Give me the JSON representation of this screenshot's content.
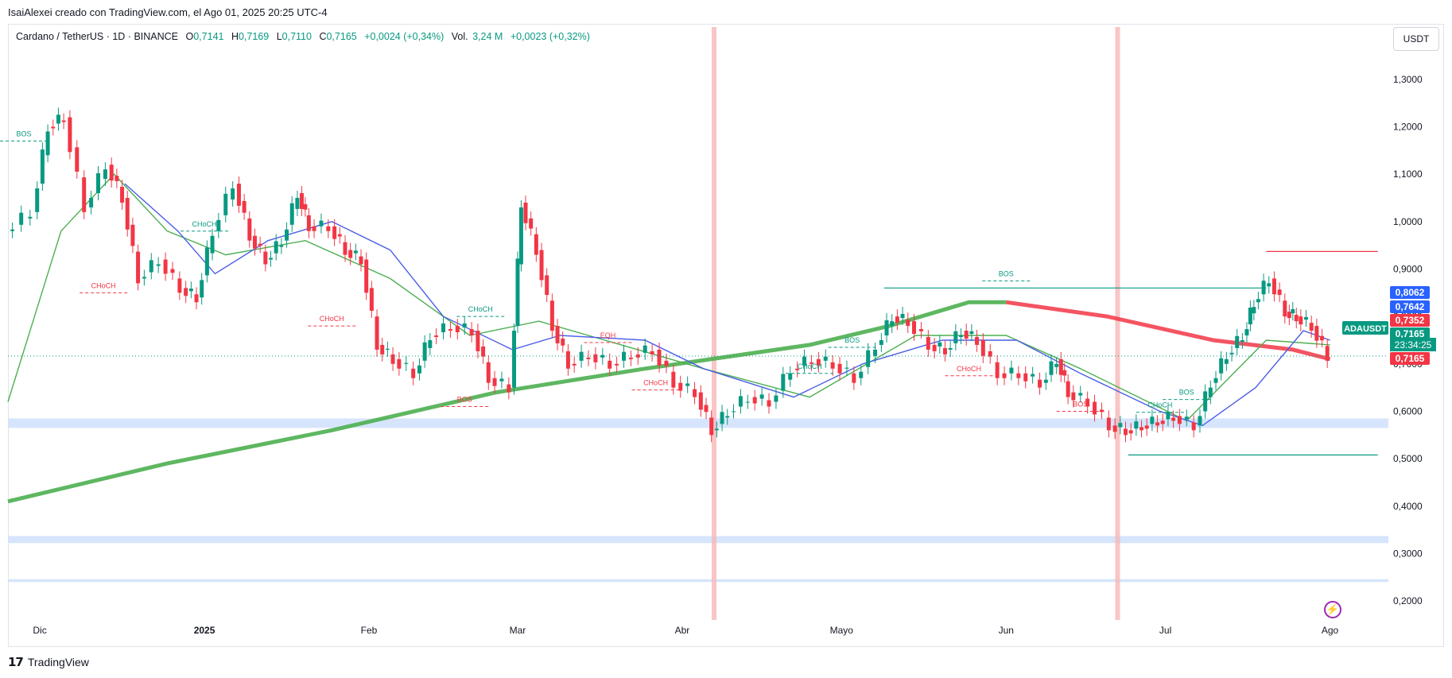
{
  "credit": "IsaiAlexei creado con TradingView.com, el Ago 01, 2025 20:25 UTC-4",
  "legend": {
    "symbol": "Cardano / TetherUS · 1D · BINANCE",
    "o_label": "O",
    "o": "0,7141",
    "h_label": "H",
    "h": "0,7169",
    "l_label": "L",
    "l": "0,7110",
    "c_label": "C",
    "c": "0,7165",
    "change": "+0,0024 (+0,34%)",
    "vol_label": "Vol.",
    "vol": "3,24 M",
    "vol_change": "+0,0023 (+0,32%)"
  },
  "currency_button": "USDT",
  "footer_logo": "TradingView",
  "colors": {
    "up": "#089981",
    "down": "#f23645",
    "wick_up": "#089981",
    "ema_long_up": "#4caf50",
    "ema_long_down": "#f23645",
    "ema_fast": "#4c5fe6",
    "ema_mid_up": "#4caf50",
    "ema_mid_down": "#f23645",
    "zone_blue": "#cfe0fb",
    "vline_red": "#f7b6b6",
    "price_line": "#089981"
  },
  "price_badges": [
    {
      "value": "0,8062",
      "color": "#2962ff"
    },
    {
      "value": "0,7642",
      "color": "#2962ff"
    },
    {
      "value": "0,7352",
      "color": "#f23645"
    },
    {
      "value": "0,7165",
      "color": "#089981"
    },
    {
      "value": "0,7165",
      "color": "#f23645"
    }
  ],
  "symbol_badge": "ADAUSDT",
  "countdown": "23:34:25",
  "chart_data": {
    "type": "candlestick",
    "ylim": [
      0.16,
      1.36
    ],
    "y_ticks": [
      "1,3000",
      "1,2000",
      "1,1000",
      "1,0000",
      "0,9000",
      "0,8000",
      "0,7000",
      "0,6000",
      "0,5000",
      "0,4000",
      "0,3000",
      "0,2000"
    ],
    "x_ticks": [
      {
        "label": "Dic",
        "date": "2024-12-01"
      },
      {
        "label": "2025",
        "date": "2025-01-01"
      },
      {
        "label": "Feb",
        "date": "2025-02-01"
      },
      {
        "label": "Mar",
        "date": "2025-03-01"
      },
      {
        "label": "Abr",
        "date": "2025-04-01"
      },
      {
        "label": "Mayo",
        "date": "2025-05-01"
      },
      {
        "label": "Jun",
        "date": "2025-06-01"
      },
      {
        "label": "Jul",
        "date": "2025-07-01"
      },
      {
        "label": "Ago",
        "date": "2025-08-01"
      }
    ],
    "x_range": [
      "2024-11-25",
      "2025-08-12"
    ],
    "closes": [
      {
        "date": "2024-11-25",
        "close": 0.98
      },
      {
        "date": "2024-11-30",
        "close": 1.02
      },
      {
        "date": "2024-12-03",
        "close": 1.2
      },
      {
        "date": "2024-12-06",
        "close": 1.22
      },
      {
        "date": "2024-12-10",
        "close": 1.03
      },
      {
        "date": "2024-12-14",
        "close": 1.12
      },
      {
        "date": "2024-12-17",
        "close": 1.05
      },
      {
        "date": "2024-12-20",
        "close": 0.88
      },
      {
        "date": "2024-12-24",
        "close": 0.92
      },
      {
        "date": "2024-12-28",
        "close": 0.86
      },
      {
        "date": "2024-12-31",
        "close": 0.84
      },
      {
        "date": "2025-01-03",
        "close": 0.98
      },
      {
        "date": "2025-01-07",
        "close": 1.08
      },
      {
        "date": "2025-01-10",
        "close": 0.97
      },
      {
        "date": "2025-01-13",
        "close": 0.92
      },
      {
        "date": "2025-01-16",
        "close": 0.96
      },
      {
        "date": "2025-01-19",
        "close": 1.06
      },
      {
        "date": "2025-01-21",
        "close": 0.99
      },
      {
        "date": "2025-01-25",
        "close": 0.99
      },
      {
        "date": "2025-01-28",
        "close": 0.94
      },
      {
        "date": "2025-01-31",
        "close": 0.92
      },
      {
        "date": "2025-02-03",
        "close": 0.74
      },
      {
        "date": "2025-02-06",
        "close": 0.71
      },
      {
        "date": "2025-02-10",
        "close": 0.68
      },
      {
        "date": "2025-02-13",
        "close": 0.76
      },
      {
        "date": "2025-02-17",
        "close": 0.78
      },
      {
        "date": "2025-02-21",
        "close": 0.77
      },
      {
        "date": "2025-02-24",
        "close": 0.67
      },
      {
        "date": "2025-02-28",
        "close": 0.65
      },
      {
        "date": "2025-03-02",
        "close": 1.04
      },
      {
        "date": "2025-03-05",
        "close": 0.94
      },
      {
        "date": "2025-03-08",
        "close": 0.78
      },
      {
        "date": "2025-03-11",
        "close": 0.7
      },
      {
        "date": "2025-03-15",
        "close": 0.72
      },
      {
        "date": "2025-03-19",
        "close": 0.7
      },
      {
        "date": "2025-03-23",
        "close": 0.72
      },
      {
        "date": "2025-03-27",
        "close": 0.73
      },
      {
        "date": "2025-03-31",
        "close": 0.66
      },
      {
        "date": "2025-04-04",
        "close": 0.64
      },
      {
        "date": "2025-04-07",
        "close": 0.56
      },
      {
        "date": "2025-04-10",
        "close": 0.6
      },
      {
        "date": "2025-04-14",
        "close": 0.63
      },
      {
        "date": "2025-04-18",
        "close": 0.62
      },
      {
        "date": "2025-04-22",
        "close": 0.69
      },
      {
        "date": "2025-04-26",
        "close": 0.71
      },
      {
        "date": "2025-04-30",
        "close": 0.7
      },
      {
        "date": "2025-05-04",
        "close": 0.67
      },
      {
        "date": "2025-05-08",
        "close": 0.74
      },
      {
        "date": "2025-05-11",
        "close": 0.8
      },
      {
        "date": "2025-05-14",
        "close": 0.79
      },
      {
        "date": "2025-05-18",
        "close": 0.74
      },
      {
        "date": "2025-05-21",
        "close": 0.73
      },
      {
        "date": "2025-05-24",
        "close": 0.77
      },
      {
        "date": "2025-05-27",
        "close": 0.75
      },
      {
        "date": "2025-05-31",
        "close": 0.68
      },
      {
        "date": "2025-06-04",
        "close": 0.68
      },
      {
        "date": "2025-06-08",
        "close": 0.66
      },
      {
        "date": "2025-06-11",
        "close": 0.71
      },
      {
        "date": "2025-06-13",
        "close": 0.64
      },
      {
        "date": "2025-06-17",
        "close": 0.62
      },
      {
        "date": "2025-06-21",
        "close": 0.57
      },
      {
        "date": "2025-06-24",
        "close": 0.56
      },
      {
        "date": "2025-06-27",
        "close": 0.57
      },
      {
        "date": "2025-06-30",
        "close": 0.58
      },
      {
        "date": "2025-07-03",
        "close": 0.59
      },
      {
        "date": "2025-07-07",
        "close": 0.57
      },
      {
        "date": "2025-07-10",
        "close": 0.66
      },
      {
        "date": "2025-07-13",
        "close": 0.72
      },
      {
        "date": "2025-07-16",
        "close": 0.76
      },
      {
        "date": "2025-07-18",
        "close": 0.83
      },
      {
        "date": "2025-07-21",
        "close": 0.88
      },
      {
        "date": "2025-07-24",
        "close": 0.81
      },
      {
        "date": "2025-07-26",
        "close": 0.8
      },
      {
        "date": "2025-07-29",
        "close": 0.78
      },
      {
        "date": "2025-08-01",
        "close": 0.7165
      }
    ],
    "ema_long": [
      {
        "date": "2024-11-25",
        "value": 0.41
      },
      {
        "date": "2024-12-25",
        "value": 0.49
      },
      {
        "date": "2025-01-25",
        "value": 0.56
      },
      {
        "date": "2025-02-25",
        "value": 0.64
      },
      {
        "date": "2025-03-25",
        "value": 0.69
      },
      {
        "date": "2025-04-25",
        "value": 0.74
      },
      {
        "date": "2025-05-10",
        "value": 0.78
      },
      {
        "date": "2025-05-25",
        "value": 0.83
      },
      {
        "date": "2025-06-01",
        "value": 0.83
      },
      {
        "date": "2025-06-20",
        "value": 0.8
      },
      {
        "date": "2025-07-10",
        "value": 0.75
      },
      {
        "date": "2025-07-25",
        "value": 0.73
      },
      {
        "date": "2025-08-01",
        "value": 0.71
      }
    ],
    "ema_fast": [
      {
        "date": "2024-12-17",
        "value": 1.08
      },
      {
        "date": "2024-12-27",
        "value": 0.98
      },
      {
        "date": "2025-01-03",
        "value": 0.89
      },
      {
        "date": "2025-01-13",
        "value": 0.96
      },
      {
        "date": "2025-01-25",
        "value": 1.0
      },
      {
        "date": "2025-02-05",
        "value": 0.94
      },
      {
        "date": "2025-02-15",
        "value": 0.8
      },
      {
        "date": "2025-02-28",
        "value": 0.73
      },
      {
        "date": "2025-03-09",
        "value": 0.76
      },
      {
        "date": "2025-03-25",
        "value": 0.75
      },
      {
        "date": "2025-04-05",
        "value": 0.69
      },
      {
        "date": "2025-04-22",
        "value": 0.63
      },
      {
        "date": "2025-05-05",
        "value": 0.7
      },
      {
        "date": "2025-05-20",
        "value": 0.75
      },
      {
        "date": "2025-06-03",
        "value": 0.75
      },
      {
        "date": "2025-06-15",
        "value": 0.68
      },
      {
        "date": "2025-06-30",
        "value": 0.6
      },
      {
        "date": "2025-07-08",
        "value": 0.57
      },
      {
        "date": "2025-07-18",
        "value": 0.65
      },
      {
        "date": "2025-07-27",
        "value": 0.77
      },
      {
        "date": "2025-08-01",
        "value": 0.75
      }
    ],
    "ema_mid": [
      {
        "date": "2024-11-25",
        "value": 0.62
      },
      {
        "date": "2024-12-05",
        "value": 0.98
      },
      {
        "date": "2024-12-15",
        "value": 1.1
      },
      {
        "date": "2024-12-25",
        "value": 0.98
      },
      {
        "date": "2025-01-05",
        "value": 0.93
      },
      {
        "date": "2025-01-20",
        "value": 0.96
      },
      {
        "date": "2025-02-05",
        "value": 0.88
      },
      {
        "date": "2025-02-20",
        "value": 0.76
      },
      {
        "date": "2025-03-05",
        "value": 0.79
      },
      {
        "date": "2025-04-05",
        "value": 0.69
      },
      {
        "date": "2025-04-25",
        "value": 0.63
      },
      {
        "date": "2025-05-15",
        "value": 0.76
      },
      {
        "date": "2025-06-01",
        "value": 0.76
      },
      {
        "date": "2025-06-15",
        "value": 0.69
      },
      {
        "date": "2025-07-05",
        "value": 0.58
      },
      {
        "date": "2025-07-20",
        "value": 0.75
      },
      {
        "date": "2025-08-01",
        "value": 0.74
      }
    ],
    "annotations": [
      {
        "text": "BOS",
        "date": "2024-11-28",
        "price": 1.18,
        "color": "#089981"
      },
      {
        "text": "CHoCH",
        "date": "2024-12-13",
        "price": 0.86,
        "color": "#f23645"
      },
      {
        "text": "CHoCH",
        "date": "2025-01-01",
        "price": 0.99,
        "color": "#089981"
      },
      {
        "text": "CHoCH",
        "date": "2025-01-25",
        "price": 0.79,
        "color": "#f23645"
      },
      {
        "text": "CHoCH",
        "date": "2025-02-22",
        "price": 0.81,
        "color": "#089981"
      },
      {
        "text": "BOS",
        "date": "2025-02-19",
        "price": 0.62,
        "color": "#f23645"
      },
      {
        "text": "EQH",
        "date": "2025-03-18",
        "price": 0.755,
        "color": "#f23645"
      },
      {
        "text": "CHoCH",
        "date": "2025-03-27",
        "price": 0.655,
        "color": "#f23645"
      },
      {
        "text": "CHoCH",
        "date": "2025-04-25",
        "price": 0.69,
        "color": "#089981"
      },
      {
        "text": "BOS",
        "date": "2025-05-03",
        "price": 0.745,
        "color": "#089981"
      },
      {
        "text": "BOS",
        "date": "2025-06-01",
        "price": 0.885,
        "color": "#089981"
      },
      {
        "text": "CHoCH",
        "date": "2025-05-25",
        "price": 0.685,
        "color": "#f23645"
      },
      {
        "text": "BOS",
        "date": "2025-06-15",
        "price": 0.61,
        "color": "#f23645"
      },
      {
        "text": "BOS",
        "date": "2025-07-05",
        "price": 0.635,
        "color": "#089981"
      },
      {
        "text": "CHoCH",
        "date": "2025-06-30",
        "price": 0.608,
        "color": "#089981"
      }
    ],
    "levels": [
      {
        "price": 0.937,
        "from": "2025-07-20",
        "to": "2025-08-10",
        "color": "#f23645"
      },
      {
        "price": 0.86,
        "from": "2025-05-09",
        "to": "2025-07-20",
        "color": "#089981"
      },
      {
        "price": 0.508,
        "from": "2025-06-24",
        "to": "2025-08-10",
        "color": "#089981"
      }
    ],
    "zones": [
      {
        "from_price": 0.565,
        "to_price": 0.585,
        "color": "#cfe0fb"
      },
      {
        "from_price": 0.322,
        "to_price": 0.337,
        "color": "#cfe0fb"
      },
      {
        "from_price": 0.24,
        "to_price": 0.246,
        "color": "#cfe0fb"
      }
    ],
    "vlines": [
      "2025-04-07",
      "2025-06-22"
    ]
  }
}
